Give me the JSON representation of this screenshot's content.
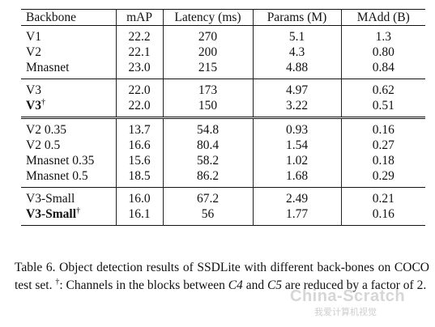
{
  "table": {
    "headers": [
      "Backbone",
      "mAP",
      "Latency (ms)",
      "Params (M)",
      "MAdd (B)"
    ],
    "groups": [
      [
        {
          "backbone": "V1",
          "dagger": false,
          "bold": false,
          "mAP": "22.2",
          "latency": "270",
          "params": "5.1",
          "madd": "1.3"
        },
        {
          "backbone": "V2",
          "dagger": false,
          "bold": false,
          "mAP": "22.1",
          "latency": "200",
          "params": "4.3",
          "madd": "0.80"
        },
        {
          "backbone": "Mnasnet",
          "dagger": false,
          "bold": false,
          "mAP": "23.0",
          "latency": "215",
          "params": "4.88",
          "madd": "0.84"
        }
      ],
      [
        {
          "backbone": "V3",
          "dagger": false,
          "bold": false,
          "mAP": "22.0",
          "latency": "173",
          "params": "4.97",
          "madd": "0.62"
        },
        {
          "backbone": "V3",
          "dagger": true,
          "bold": true,
          "mAP": "22.0",
          "latency": "150",
          "params": "3.22",
          "madd": "0.51"
        }
      ],
      [
        {
          "backbone": "V2 0.35",
          "dagger": false,
          "bold": false,
          "mAP": "13.7",
          "latency": "54.8",
          "params": "0.93",
          "madd": "0.16"
        },
        {
          "backbone": "V2 0.5",
          "dagger": false,
          "bold": false,
          "mAP": "16.6",
          "latency": "80.4",
          "params": "1.54",
          "madd": "0.27"
        },
        {
          "backbone": "Mnasnet 0.35",
          "dagger": false,
          "bold": false,
          "mAP": "15.6",
          "latency": "58.2",
          "params": "1.02",
          "madd": "0.18"
        },
        {
          "backbone": "Mnasnet 0.5",
          "dagger": false,
          "bold": false,
          "mAP": "18.5",
          "latency": "86.2",
          "params": "1.68",
          "madd": "0.29"
        }
      ],
      [
        {
          "backbone": "V3-Small",
          "dagger": false,
          "bold": false,
          "mAP": "16.0",
          "latency": "67.2",
          "params": "2.49",
          "madd": "0.21"
        },
        {
          "backbone": "V3-Small",
          "dagger": true,
          "bold": true,
          "mAP": "16.1",
          "latency": "56",
          "params": "1.77",
          "madd": "0.16"
        }
      ]
    ]
  },
  "caption": {
    "part1": "Table 6. Object detection results of SSDLite with different back-bones on COCO test set.",
    "dagger": "†",
    "part2": ": Channels in the blocks between",
    "c4": "C4",
    "part3": "and",
    "c5": "C5",
    "part4": "are reduced by a factor of 2."
  },
  "watermark": {
    "main": "China-Scratch",
    "sub": "我爱计算机视觉"
  }
}
